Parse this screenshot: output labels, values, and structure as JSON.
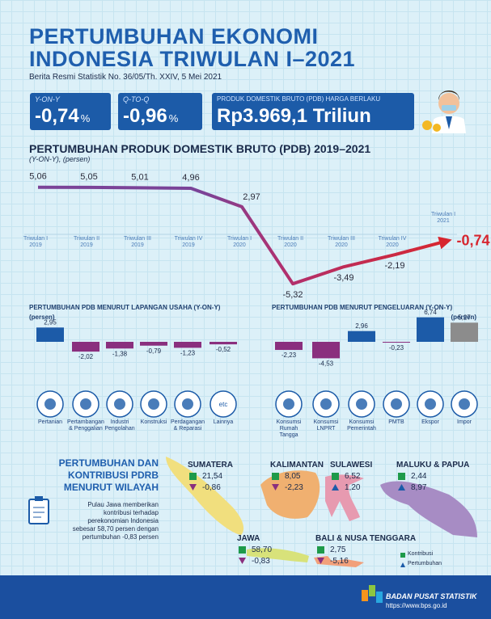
{
  "header": {
    "title_line1": "PERTUMBUHAN EKONOMI",
    "title_line2": "INDONESIA TRIWULAN I–2021",
    "subtitle": "Berita Resmi Statistik No. 36/05/Th. XXIV, 5 Mei 2021"
  },
  "kpis": [
    {
      "label": "Y-ON-Y",
      "value": "-0,74",
      "unit": "%"
    },
    {
      "label": "Q-TO-Q",
      "value": "-0,96",
      "unit": "%"
    },
    {
      "label": "PRODUK DOMESTIK BRUTO (PDB) HARGA BERLAKU",
      "value": "Rp3.969,1 Triliun"
    }
  ],
  "chart_data": [
    {
      "type": "line",
      "title": "PERTUMBUHAN PRODUK DOMESTIK BRUTO (PDB) 2019–2021",
      "subtitle": "(Y-ON-Y), (persen)",
      "categories": [
        "Triwulan I 2019",
        "Triwulan II 2019",
        "Triwulan III 2019",
        "Triwulan IV 2019",
        "Triwulan I 2020",
        "Triwulan II 2020",
        "Triwulan III 2020",
        "Triwulan IV 2020",
        "Triwulan I 2021"
      ],
      "values": [
        5.06,
        5.05,
        5.01,
        4.96,
        2.97,
        -5.32,
        -3.49,
        -2.19,
        -0.74
      ],
      "value_labels": [
        "5,06",
        "5,05",
        "5,01",
        "4,96",
        "2,97",
        "-5,32",
        "-3,49",
        "-2,19",
        "-0,74"
      ],
      "color": "#7a4398",
      "ylim": [
        -6,
        6
      ]
    },
    {
      "type": "bar",
      "title": "PERTUMBUHAN PDB MENURUT LAPANGAN USAHA (Y-ON-Y)",
      "y_label": "(persen)",
      "categories": [
        "Pertanian",
        "Pertambangan & Penggalian",
        "Industri Pengolahan",
        "Konstruksi",
        "Perdagangan & Reparasi",
        "Lainnya"
      ],
      "values": [
        2.95,
        -2.02,
        -1.38,
        -0.79,
        -1.23,
        -0.52
      ],
      "value_labels": [
        "2,95",
        "-2,02",
        "-1,38",
        "-0,79",
        "-1,23",
        "-0,52"
      ],
      "colors": [
        "#1c5ba8",
        "#8a2f7e",
        "#8a2f7e",
        "#8a2f7e",
        "#8a2f7e",
        "#8a2f7e"
      ],
      "ylim": [
        -4,
        4
      ]
    },
    {
      "type": "bar",
      "title": "PERTUMBUHAN PDB MENURUT PENGELUARAN (Y-ON-Y)",
      "y_label": "(persen)",
      "categories": [
        "Konsumsi Rumah Tangga",
        "Konsumsi LNPRT",
        "Konsumsi Pemerintah",
        "PMTB",
        "Ekspor",
        "Impor"
      ],
      "values": [
        -2.23,
        -4.53,
        2.96,
        -0.23,
        6.74,
        5.27
      ],
      "value_labels": [
        "-2,23",
        "-4,53",
        "2,96",
        "-0,23",
        "6,74",
        "5,27"
      ],
      "colors": [
        "#8a2f7e",
        "#8a2f7e",
        "#1c5ba8",
        "#8a2f7e",
        "#1c5ba8",
        "#8c8c8c"
      ],
      "ylim": [
        -6,
        8
      ]
    }
  ],
  "icons": {
    "lainnya": "etc"
  },
  "regions_section": {
    "title": "PERTUMBUHAN DAN KONTRIBUSI PDRB MENURUT WILAYAH",
    "note": "Pulau Jawa memberikan kontribusi terhadap perekonomian Indonesia sebesar 58,70 persen dengan pertumbuhan -0,83 persen",
    "regions": [
      {
        "name": "SUMATERA",
        "kontribusi": "21,54",
        "pertumbuhan": "-0,86"
      },
      {
        "name": "KALIMANTAN",
        "kontribusi": "8,05",
        "pertumbuhan": "-2,23"
      },
      {
        "name": "SULAWESI",
        "kontribusi": "6,52",
        "pertumbuhan": "1,20"
      },
      {
        "name": "MALUKU & PAPUA",
        "kontribusi": "2,44",
        "pertumbuhan": "8,97"
      },
      {
        "name": "JAWA",
        "kontribusi": "58,70",
        "pertumbuhan": "-0,83"
      },
      {
        "name": "BALI & NUSA TENGGARA",
        "kontribusi": "2,75",
        "pertumbuhan": "-5,16"
      }
    ],
    "legend": [
      "Kontribusi",
      "Pertumbuhan"
    ]
  },
  "footer": {
    "org": "BADAN PUSAT STATISTIK",
    "url": "https://www.bps.go.id"
  }
}
